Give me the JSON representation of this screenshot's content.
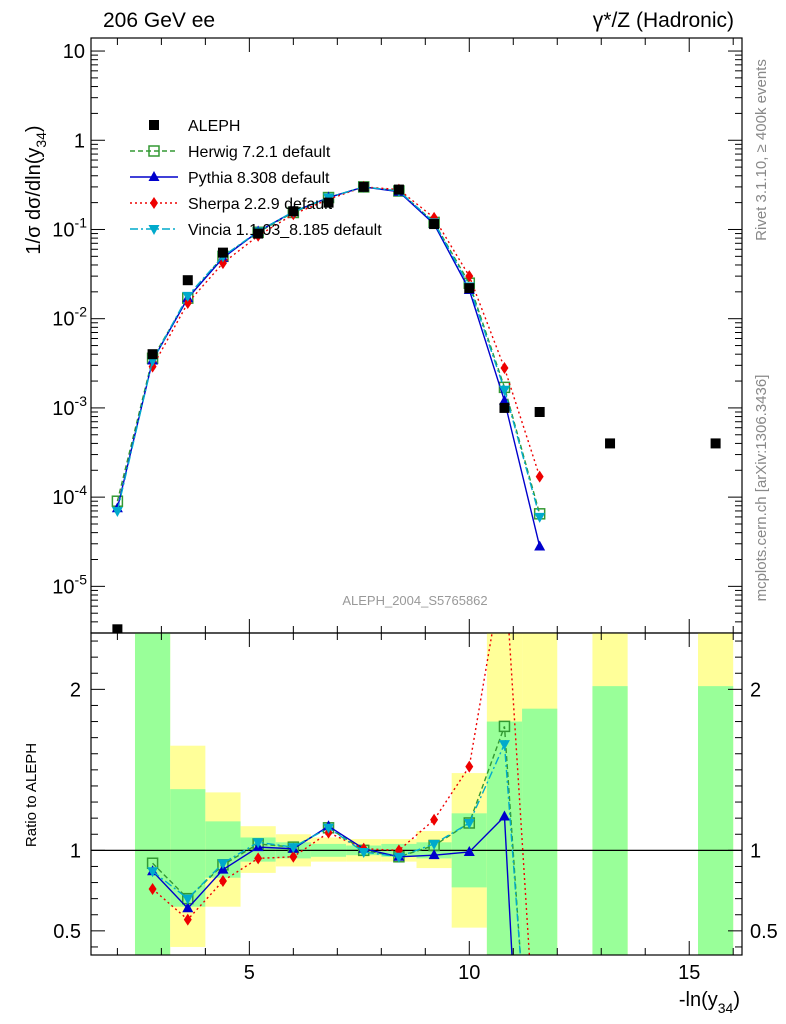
{
  "header": {
    "left": "206 GeV ee",
    "right": "γ*/Z (Hadronic)"
  },
  "side_text": {
    "rivet": "Rivet 3.1.10, ≥ 400k events",
    "mcplots": "mcplots.cern.ch [arXiv:1306.3436]"
  },
  "analysis_label": "ALEPH_2004_S5765862",
  "top_panel": {
    "ylabel": "1/σ  dσ/dln(y34)",
    "yscale": "log",
    "ylim": [
      3e-06,
      14
    ],
    "yticks": [
      {
        "value": 1e-05,
        "label": "10^-5"
      },
      {
        "value": 0.0001,
        "label": "10^-4"
      },
      {
        "value": 0.001,
        "label": "10^-3"
      },
      {
        "value": 0.01,
        "label": "10^-2"
      },
      {
        "value": 0.1,
        "label": "10^-1"
      },
      {
        "value": 1,
        "label": "1"
      },
      {
        "value": 10,
        "label": "10"
      }
    ]
  },
  "bottom_panel": {
    "ylabel": "Ratio to ALEPH",
    "ylim": [
      0.35,
      2.35
    ],
    "yticks": [
      {
        "value": 0.5,
        "label": "0.5"
      },
      {
        "value": 1,
        "label": "1"
      },
      {
        "value": 2,
        "label": "2"
      }
    ]
  },
  "x_axis": {
    "label": "-ln(y34)",
    "xlim": [
      1.4,
      16.2
    ],
    "ticks": [
      5,
      10,
      15
    ]
  },
  "colors": {
    "data": "#000000",
    "herwig": "#339933",
    "pythia": "#0000cc",
    "sherpa": "#ee0000",
    "vincia": "#00aacc",
    "band_green": "#99ff99",
    "band_yellow": "#ffff99"
  },
  "chart_data": {
    "type": "line",
    "x": [
      2.0,
      2.8,
      3.6,
      4.4,
      5.2,
      6.0,
      6.8,
      7.6,
      8.4,
      9.2,
      10.0,
      10.8,
      11.6,
      13.2,
      15.6
    ],
    "data_series": {
      "name": "ALEPH",
      "values": [
        3.3e-06,
        0.004,
        0.027,
        0.055,
        0.09,
        0.16,
        0.2,
        0.3,
        0.28,
        0.115,
        0.022,
        0.001,
        0.0009,
        0.0004,
        0.0004
      ]
    },
    "series": [
      {
        "name": "Herwig 7.2.1 default",
        "key": "herwig",
        "marker": "open-square",
        "dash": "5,3",
        "x": [
          2.0,
          2.8,
          3.6,
          4.4,
          5.2,
          6.0,
          6.8,
          7.6,
          8.4,
          9.2,
          10.0,
          10.8,
          11.6
        ],
        "values": [
          9e-05,
          0.0036,
          0.017,
          0.05,
          0.093,
          0.155,
          0.228,
          0.3,
          0.27,
          0.12,
          0.025,
          0.0017,
          6.5e-05
        ]
      },
      {
        "name": "Pythia 8.308 default",
        "key": "pythia",
        "marker": "triangle-up",
        "dash": "",
        "x": [
          2.0,
          2.8,
          3.6,
          4.4,
          5.2,
          6.0,
          6.8,
          7.6,
          8.4,
          9.2,
          10.0,
          10.8,
          11.6
        ],
        "values": [
          7.5e-05,
          0.0034,
          0.017,
          0.048,
          0.095,
          0.158,
          0.228,
          0.3,
          0.265,
          0.115,
          0.021,
          0.0012,
          2.8e-05
        ]
      },
      {
        "name": "Sherpa 2.2.9 default",
        "key": "sherpa",
        "marker": "diamond",
        "dash": "2,3",
        "x": [
          2.8,
          3.6,
          4.4,
          5.2,
          6.0,
          6.8,
          7.6,
          8.4,
          9.2,
          10.0,
          10.8,
          11.6
        ],
        "values": [
          0.0029,
          0.015,
          0.042,
          0.085,
          0.148,
          0.218,
          0.3,
          0.28,
          0.135,
          0.03,
          0.0028,
          0.00017
        ]
      },
      {
        "name": "Vincia 1.1.03_8.185 default",
        "key": "vincia",
        "marker": "triangle-down",
        "dash": "8,3,2,3",
        "x": [
          2.0,
          2.8,
          3.6,
          4.4,
          5.2,
          6.0,
          6.8,
          7.6,
          8.4,
          9.2,
          10.0,
          10.8,
          11.6
        ],
        "values": [
          7e-05,
          0.0034,
          0.018,
          0.05,
          0.095,
          0.158,
          0.228,
          0.3,
          0.27,
          0.12,
          0.023,
          0.0016,
          6e-05
        ]
      }
    ],
    "ratio": {
      "bands": [
        {
          "x0": 2.4,
          "x1": 3.2,
          "yellow": [
            0.35,
            2.35
          ],
          "green": [
            0.35,
            2.35
          ]
        },
        {
          "x0": 3.2,
          "x1": 4.0,
          "yellow": [
            0.4,
            1.65
          ],
          "green": [
            0.65,
            1.38
          ]
        },
        {
          "x0": 4.0,
          "x1": 4.8,
          "yellow": [
            0.65,
            1.36
          ],
          "green": [
            0.83,
            1.18
          ]
        },
        {
          "x0": 4.8,
          "x1": 5.6,
          "yellow": [
            0.86,
            1.15
          ],
          "green": [
            0.93,
            1.08
          ]
        },
        {
          "x0": 5.6,
          "x1": 6.4,
          "yellow": [
            0.9,
            1.1
          ],
          "green": [
            0.95,
            1.05
          ]
        },
        {
          "x0": 6.4,
          "x1": 7.2,
          "yellow": [
            0.93,
            1.08
          ],
          "green": [
            0.96,
            1.04
          ]
        },
        {
          "x0": 7.2,
          "x1": 8.0,
          "yellow": [
            0.93,
            1.07
          ],
          "green": [
            0.97,
            1.03
          ]
        },
        {
          "x0": 8.0,
          "x1": 8.8,
          "yellow": [
            0.93,
            1.07
          ],
          "green": [
            0.96,
            1.04
          ]
        },
        {
          "x0": 8.8,
          "x1": 9.6,
          "yellow": [
            0.89,
            1.12
          ],
          "green": [
            0.95,
            1.05
          ]
        },
        {
          "x0": 9.6,
          "x1": 10.4,
          "yellow": [
            0.52,
            1.48
          ],
          "green": [
            0.77,
            1.23
          ]
        },
        {
          "x0": 10.4,
          "x1": 11.2,
          "yellow": [
            0.35,
            2.35
          ],
          "green": [
            0.35,
            1.8
          ]
        },
        {
          "x0": 11.2,
          "x1": 12.0,
          "yellow": [
            0.35,
            2.35
          ],
          "green": [
            0.35,
            1.88
          ]
        },
        {
          "x0": 12.8,
          "x1": 13.6,
          "yellow": [
            0.35,
            2.35
          ],
          "green": [
            0.35,
            2.02
          ]
        },
        {
          "x0": 15.2,
          "x1": 16.0,
          "yellow": [
            0.35,
            2.35
          ],
          "green": [
            0.35,
            2.02
          ]
        }
      ],
      "series": [
        {
          "key": "herwig",
          "x": [
            2.8,
            3.6,
            4.4,
            5.2,
            6.0,
            6.8,
            7.6,
            8.4,
            9.2,
            10.0,
            10.8,
            11.2
          ],
          "values": [
            0.92,
            0.7,
            0.91,
            1.04,
            1.02,
            1.14,
            1.0,
            0.96,
            1.03,
            1.17,
            1.77,
            0.2
          ]
        },
        {
          "key": "pythia",
          "x": [
            2.8,
            3.6,
            4.4,
            5.2,
            6.0,
            6.8,
            7.6,
            8.4,
            9.2,
            10.0,
            10.8,
            11.0
          ],
          "values": [
            0.87,
            0.64,
            0.88,
            1.02,
            1.01,
            1.15,
            1.01,
            0.96,
            0.97,
            0.99,
            1.21,
            0.2
          ]
        },
        {
          "key": "sherpa",
          "x": [
            2.8,
            3.6,
            4.4,
            5.2,
            6.0,
            6.8,
            7.6,
            8.4,
            9.2,
            10.0,
            10.8,
            11.4
          ],
          "values": [
            0.76,
            0.57,
            0.81,
            0.95,
            0.96,
            1.11,
            1.01,
            1.0,
            1.19,
            1.52,
            2.8,
            0.2
          ]
        },
        {
          "key": "vincia",
          "x": [
            2.8,
            3.6,
            4.4,
            5.2,
            6.0,
            6.8,
            7.6,
            8.4,
            9.2,
            10.0,
            10.8,
            11.2
          ],
          "values": [
            0.87,
            0.7,
            0.92,
            1.05,
            1.02,
            1.14,
            0.99,
            0.96,
            1.04,
            1.17,
            1.66,
            0.2
          ]
        }
      ]
    }
  },
  "legend": [
    {
      "key": "data",
      "label": "ALEPH",
      "marker": "filled-square"
    },
    {
      "key": "herwig",
      "label": "Herwig 7.2.1 default",
      "marker": "open-square"
    },
    {
      "key": "pythia",
      "label": "Pythia 8.308 default",
      "marker": "triangle-up"
    },
    {
      "key": "sherpa",
      "label": "Sherpa 2.2.9 default",
      "marker": "diamond"
    },
    {
      "key": "vincia",
      "label": "Vincia 1.1.03_8.185 default",
      "marker": "triangle-down"
    }
  ]
}
